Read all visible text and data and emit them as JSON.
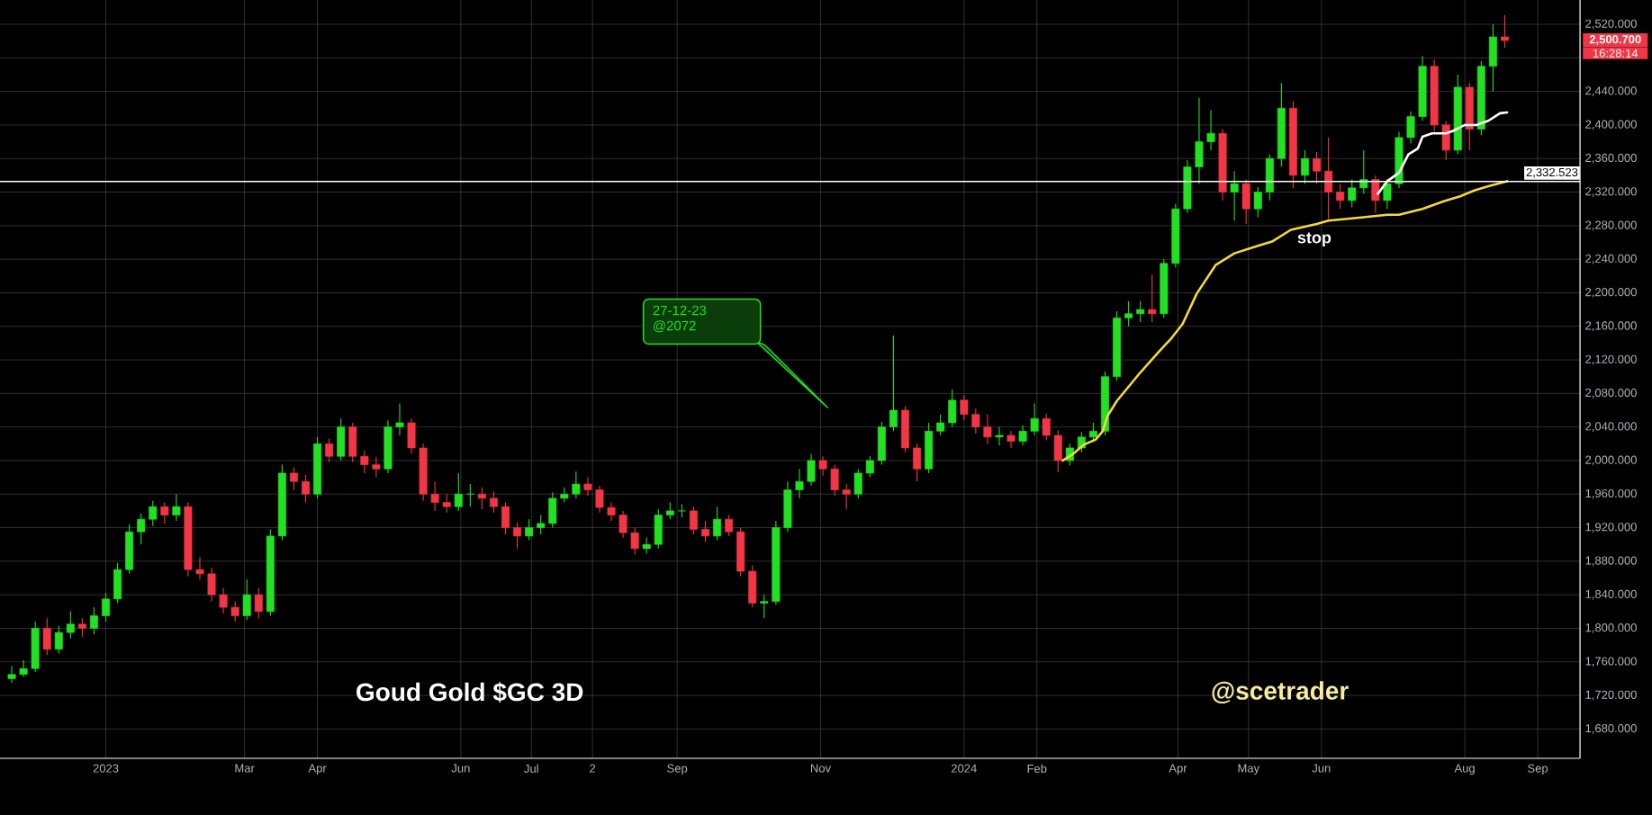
{
  "chart_data": {
    "type": "candlestick",
    "title": "Goud Gold $GC 3D",
    "x": [
      "2022-11-22",
      "2022-11-27",
      "2022-12-02",
      "2022-12-07",
      "2022-12-12",
      "2022-12-17",
      "2022-12-22",
      "2022-12-27",
      "2023-01-01",
      "2023-01-06",
      "2023-01-11",
      "2023-01-16",
      "2023-01-21",
      "2023-01-26",
      "2023-01-31",
      "2023-02-05",
      "2023-02-10",
      "2023-02-15",
      "2023-02-20",
      "2023-02-25",
      "2023-03-02",
      "2023-03-07",
      "2023-03-12",
      "2023-03-17",
      "2023-03-22",
      "2023-03-27",
      "2023-04-01",
      "2023-04-06",
      "2023-04-11",
      "2023-04-16",
      "2023-04-21",
      "2023-04-26",
      "2023-05-01",
      "2023-05-06",
      "2023-05-11",
      "2023-05-16",
      "2023-05-21",
      "2023-05-26",
      "2023-05-31",
      "2023-06-05",
      "2023-06-10",
      "2023-06-15",
      "2023-06-20",
      "2023-06-25",
      "2023-06-30",
      "2023-07-05",
      "2023-07-10",
      "2023-07-15",
      "2023-07-20",
      "2023-07-25",
      "2023-07-30",
      "2023-08-04",
      "2023-08-09",
      "2023-08-14",
      "2023-08-19",
      "2023-08-24",
      "2023-08-29",
      "2023-09-03",
      "2023-09-08",
      "2023-09-13",
      "2023-09-18",
      "2023-09-23",
      "2023-09-28",
      "2023-10-03",
      "2023-10-08",
      "2023-10-13",
      "2023-10-18",
      "2023-10-23",
      "2023-10-28",
      "2023-11-02",
      "2023-11-07",
      "2023-11-12",
      "2023-11-17",
      "2023-11-22",
      "2023-11-27",
      "2023-12-02",
      "2023-12-07",
      "2023-12-12",
      "2023-12-17",
      "2023-12-22",
      "2023-12-27",
      "2024-01-01",
      "2024-01-06",
      "2024-01-11",
      "2024-01-16",
      "2024-01-21",
      "2024-01-26",
      "2024-01-31",
      "2024-02-05",
      "2024-02-10",
      "2024-02-15",
      "2024-02-20",
      "2024-02-25",
      "2024-03-01",
      "2024-03-06",
      "2024-03-11",
      "2024-03-16",
      "2024-03-21",
      "2024-03-26",
      "2024-03-31",
      "2024-04-05",
      "2024-04-10",
      "2024-04-15",
      "2024-04-20",
      "2024-04-25",
      "2024-04-30",
      "2024-05-05",
      "2024-05-10",
      "2024-05-15",
      "2024-05-20",
      "2024-05-25",
      "2024-05-30",
      "2024-06-04",
      "2024-06-09",
      "2024-06-14",
      "2024-06-19",
      "2024-06-24",
      "2024-06-29",
      "2024-07-04",
      "2024-07-09",
      "2024-07-14",
      "2024-07-19",
      "2024-07-24",
      "2024-07-29",
      "2024-08-03",
      "2024-08-08",
      "2024-08-13",
      "2024-08-18"
    ],
    "ohlc": [
      [
        1740,
        1755,
        1735,
        1745
      ],
      [
        1745,
        1762,
        1742,
        1752
      ],
      [
        1752,
        1808,
        1748,
        1800
      ],
      [
        1800,
        1812,
        1768,
        1775
      ],
      [
        1775,
        1803,
        1770,
        1795
      ],
      [
        1795,
        1820,
        1788,
        1805
      ],
      [
        1805,
        1812,
        1790,
        1800
      ],
      [
        1800,
        1825,
        1793,
        1815
      ],
      [
        1815,
        1842,
        1808,
        1835
      ],
      [
        1835,
        1878,
        1830,
        1870
      ],
      [
        1870,
        1924,
        1865,
        1915
      ],
      [
        1915,
        1937,
        1900,
        1930
      ],
      [
        1930,
        1952,
        1922,
        1945
      ],
      [
        1945,
        1950,
        1925,
        1935
      ],
      [
        1935,
        1960,
        1928,
        1945
      ],
      [
        1945,
        1950,
        1862,
        1870
      ],
      [
        1870,
        1885,
        1858,
        1865
      ],
      [
        1865,
        1872,
        1832,
        1840
      ],
      [
        1840,
        1848,
        1818,
        1825
      ],
      [
        1825,
        1832,
        1808,
        1815
      ],
      [
        1815,
        1858,
        1810,
        1840
      ],
      [
        1840,
        1848,
        1812,
        1820
      ],
      [
        1820,
        1918,
        1815,
        1910
      ],
      [
        1910,
        1995,
        1905,
        1985
      ],
      [
        1985,
        1992,
        1965,
        1975
      ],
      [
        1975,
        1983,
        1950,
        1960
      ],
      [
        1960,
        2028,
        1955,
        2020
      ],
      [
        2020,
        2026,
        1998,
        2005
      ],
      [
        2005,
        2050,
        2000,
        2040
      ],
      [
        2040,
        2045,
        1998,
        2005
      ],
      [
        2005,
        2012,
        1985,
        1995
      ],
      [
        1995,
        2004,
        1980,
        1990
      ],
      [
        1990,
        2048,
        1985,
        2040
      ],
      [
        2040,
        2068,
        2030,
        2045
      ],
      [
        2045,
        2050,
        2008,
        2015
      ],
      [
        2015,
        2020,
        1952,
        1960
      ],
      [
        1960,
        1975,
        1940,
        1950
      ],
      [
        1950,
        1960,
        1938,
        1945
      ],
      [
        1945,
        1985,
        1940,
        1960
      ],
      [
        1960,
        1972,
        1945,
        1960
      ],
      [
        1960,
        1968,
        1942,
        1955
      ],
      [
        1955,
        1963,
        1938,
        1945
      ],
      [
        1945,
        1950,
        1912,
        1920
      ],
      [
        1920,
        1926,
        1895,
        1910
      ],
      [
        1910,
        1930,
        1905,
        1920
      ],
      [
        1920,
        1935,
        1912,
        1925
      ],
      [
        1925,
        1962,
        1920,
        1955
      ],
      [
        1955,
        1968,
        1950,
        1960
      ],
      [
        1960,
        1987,
        1955,
        1972
      ],
      [
        1972,
        1980,
        1958,
        1965
      ],
      [
        1965,
        1970,
        1938,
        1944
      ],
      [
        1944,
        1950,
        1928,
        1935
      ],
      [
        1935,
        1940,
        1908,
        1914
      ],
      [
        1914,
        1920,
        1888,
        1895
      ],
      [
        1895,
        1908,
        1889,
        1900
      ],
      [
        1900,
        1942,
        1895,
        1935
      ],
      [
        1935,
        1950,
        1930,
        1940
      ],
      [
        1940,
        1948,
        1932,
        1940
      ],
      [
        1940,
        1945,
        1912,
        1918
      ],
      [
        1918,
        1928,
        1903,
        1910
      ],
      [
        1910,
        1945,
        1905,
        1930
      ],
      [
        1930,
        1935,
        1910,
        1915
      ],
      [
        1915,
        1920,
        1862,
        1868
      ],
      [
        1868,
        1875,
        1825,
        1830
      ],
      [
        1830,
        1840,
        1812,
        1832
      ],
      [
        1832,
        1928,
        1828,
        1920
      ],
      [
        1920,
        1975,
        1915,
        1965
      ],
      [
        1965,
        1990,
        1955,
        1975
      ],
      [
        1975,
        2008,
        1970,
        2000
      ],
      [
        2000,
        2005,
        1982,
        1990
      ],
      [
        1990,
        1995,
        1958,
        1965
      ],
      [
        1965,
        1972,
        1942,
        1960
      ],
      [
        1960,
        1990,
        1955,
        1985
      ],
      [
        1985,
        2005,
        1980,
        2000
      ],
      [
        2000,
        2046,
        1995,
        2040
      ],
      [
        2040,
        2149,
        2035,
        2060
      ],
      [
        2060,
        2065,
        2010,
        2015
      ],
      [
        2015,
        2020,
        1975,
        1990
      ],
      [
        1990,
        2045,
        1985,
        2035
      ],
      [
        2035,
        2055,
        2030,
        2045
      ],
      [
        2045,
        2085,
        2040,
        2072
      ],
      [
        2072,
        2078,
        2048,
        2055
      ],
      [
        2055,
        2062,
        2032,
        2040
      ],
      [
        2040,
        2055,
        2020,
        2028
      ],
      [
        2028,
        2040,
        2018,
        2030
      ],
      [
        2030,
        2035,
        2015,
        2023
      ],
      [
        2023,
        2042,
        2018,
        2035
      ],
      [
        2035,
        2068,
        2030,
        2050
      ],
      [
        2050,
        2056,
        2024,
        2030
      ],
      [
        2030,
        2036,
        1986,
        2000
      ],
      [
        2000,
        2020,
        1994,
        2015
      ],
      [
        2015,
        2034,
        2010,
        2028
      ],
      [
        2028,
        2045,
        2022,
        2035
      ],
      [
        2035,
        2106,
        2030,
        2100
      ],
      [
        2100,
        2178,
        2095,
        2170
      ],
      [
        2170,
        2190,
        2160,
        2175
      ],
      [
        2175,
        2190,
        2165,
        2180
      ],
      [
        2180,
        2222,
        2165,
        2175
      ],
      [
        2175,
        2240,
        2170,
        2235
      ],
      [
        2235,
        2306,
        2230,
        2300
      ],
      [
        2300,
        2358,
        2295,
        2350
      ],
      [
        2350,
        2432,
        2330,
        2380
      ],
      [
        2380,
        2418,
        2370,
        2390
      ],
      [
        2390,
        2395,
        2310,
        2320
      ],
      [
        2320,
        2345,
        2286,
        2330
      ],
      [
        2330,
        2335,
        2282,
        2300
      ],
      [
        2300,
        2326,
        2290,
        2320
      ],
      [
        2320,
        2365,
        2310,
        2360
      ],
      [
        2360,
        2450,
        2350,
        2420
      ],
      [
        2420,
        2428,
        2325,
        2340
      ],
      [
        2340,
        2370,
        2330,
        2360
      ],
      [
        2360,
        2368,
        2330,
        2345
      ],
      [
        2345,
        2385,
        2288,
        2320
      ],
      [
        2320,
        2330,
        2300,
        2310
      ],
      [
        2310,
        2335,
        2302,
        2325
      ],
      [
        2325,
        2370,
        2318,
        2335
      ],
      [
        2335,
        2340,
        2295,
        2310
      ],
      [
        2310,
        2335,
        2300,
        2330
      ],
      [
        2330,
        2392,
        2325,
        2385
      ],
      [
        2385,
        2416,
        2378,
        2410
      ],
      [
        2410,
        2482,
        2405,
        2470
      ],
      [
        2470,
        2478,
        2392,
        2400
      ],
      [
        2400,
        2405,
        2358,
        2370
      ],
      [
        2370,
        2460,
        2365,
        2445
      ],
      [
        2445,
        2450,
        2370,
        2395
      ],
      [
        2395,
        2476,
        2388,
        2470
      ],
      [
        2470,
        2520,
        2440,
        2505
      ],
      [
        2505,
        2531,
        2492,
        2500.7
      ]
    ],
    "colors": [
      "#22e022",
      "#22e022",
      "#22e022",
      "#f23645",
      "#22e022",
      "#22e022",
      "#f23645",
      "#22e022",
      "#22e022",
      "#22e022",
      "#22e022",
      "#22e022",
      "#22e022",
      "#f23645",
      "#22e022",
      "#f23645",
      "#f23645",
      "#f23645",
      "#f23645",
      "#f23645",
      "#22e022",
      "#f23645",
      "#22e022",
      "#22e022",
      "#f23645",
      "#f23645",
      "#22e022",
      "#f23645",
      "#22e022",
      "#f23645",
      "#f23645",
      "#f23645",
      "#22e022",
      "#22e022",
      "#f23645",
      "#f23645",
      "#f23645",
      "#f23645",
      "#22e022",
      "#22e022",
      "#f23645",
      "#f23645",
      "#f23645",
      "#f23645",
      "#22e022",
      "#22e022",
      "#22e022",
      "#22e022",
      "#22e022",
      "#f23645",
      "#f23645",
      "#f23645",
      "#f23645",
      "#f23645",
      "#22e022",
      "#22e022",
      "#22e022",
      "#22e022",
      "#f23645",
      "#f23645",
      "#22e022",
      "#f23645",
      "#f23645",
      "#f23645",
      "#22e022",
      "#22e022",
      "#22e022",
      "#22e022",
      "#22e022",
      "#f23645",
      "#f23645",
      "#f23645",
      "#22e022",
      "#22e022",
      "#22e022",
      "#22e022",
      "#f23645",
      "#f23645",
      "#22e022",
      "#22e022",
      "#22e022",
      "#f23645",
      "#f23645",
      "#f23645",
      "#22e022",
      "#f23645",
      "#22e022",
      "#22e022",
      "#f23645",
      "#f23645",
      "#22e022",
      "#22e022",
      "#22e022",
      "#22e022",
      "#22e022",
      "#22e022",
      "#22e022",
      "#f23645",
      "#22e022",
      "#22e022",
      "#22e022",
      "#22e022",
      "#22e022",
      "#f23645",
      "#22e022",
      "#f23645",
      "#22e022",
      "#22e022",
      "#22e022",
      "#f23645",
      "#22e022",
      "#f23645",
      "#f23645",
      "#f23645",
      "#22e022",
      "#22e022",
      "#f23645",
      "#22e022",
      "#22e022",
      "#22e022",
      "#22e022",
      "#f23645",
      "#f23645",
      "#22e022",
      "#f23645",
      "#22e022",
      "#22e022",
      "#f23645"
    ],
    "series": [
      {
        "type": "line",
        "color": "#f5d93a",
        "x": [
          "2024-02-12",
          "2024-02-16",
          "2024-02-21",
          "2024-02-26",
          "2024-02-29",
          "2024-03-02",
          "2024-03-06",
          "2024-03-16",
          "2024-03-24",
          "2024-03-29",
          "2024-04-03",
          "2024-04-09",
          "2024-04-17",
          "2024-04-25",
          "2024-05-05",
          "2024-05-11",
          "2024-05-19",
          "2024-05-30",
          "2024-06-04",
          "2024-06-19",
          "2024-06-29",
          "2024-07-04",
          "2024-07-14",
          "2024-07-23",
          "2024-07-30",
          "2024-08-05",
          "2024-08-11",
          "2024-08-19"
        ],
        "values": [
          2000,
          2007,
          2019,
          2025,
          2035,
          2053,
          2071,
          2105,
          2130,
          2145,
          2163,
          2199,
          2233,
          2247,
          2256,
          2261,
          2275,
          2282,
          2286,
          2290,
          2293,
          2293,
          2300,
          2309,
          2315,
          2322,
          2327,
          2333
        ]
      },
      {
        "type": "line",
        "color": "#ffffff",
        "x": [
          "2024-06-25",
          "2024-06-29",
          "2024-07-04",
          "2024-07-08",
          "2024-07-12",
          "2024-07-14",
          "2024-07-18",
          "2024-07-24",
          "2024-07-27",
          "2024-08-01",
          "2024-08-06",
          "2024-08-11",
          "2024-08-16",
          "2024-08-19"
        ],
        "values": [
          2318,
          2333,
          2343,
          2365,
          2372,
          2386,
          2390,
          2390,
          2393,
          2400,
          2400,
          2405,
          2414,
          2415
        ]
      }
    ],
    "ref_lines": [
      {
        "axis": "y",
        "value": 2332.523,
        "label": "2,332.523",
        "color": "#ffffff"
      }
    ],
    "annotations": [
      "27-12-23 @2072",
      {
        "text": "stop",
        "x": "2024-05-29",
        "y": 2282
      },
      "2,500.700",
      "16:28:14",
      "@scetrader"
    ],
    "xlim": [
      "2022-11-17",
      "2024-09-19"
    ],
    "xticks": [
      {
        "value": "2023-01-01",
        "label": "2023"
      },
      {
        "value": "2023-03-01",
        "label": "Mar"
      },
      {
        "value": "2023-04-01",
        "label": "Apr"
      },
      {
        "value": "2023-06-01",
        "label": "Jun"
      },
      {
        "value": "2023-07-01",
        "label": "Jul"
      },
      {
        "value": "2023-07-27",
        "label": "2"
      },
      {
        "value": "2023-09-01",
        "label": "Sep"
      },
      {
        "value": "2023-11-01",
        "label": "Nov"
      },
      {
        "value": "2024-01-01",
        "label": "2024"
      },
      {
        "value": "2024-02-01",
        "label": "Feb"
      },
      {
        "value": "2024-04-01",
        "label": "Apr"
      },
      {
        "value": "2024-05-01",
        "label": "May"
      },
      {
        "value": "2024-06-01",
        "label": "Jun"
      },
      {
        "value": "2024-08-01",
        "label": "Aug"
      },
      {
        "value": "2024-09-01",
        "label": "Sep"
      }
    ],
    "ylim": [
      1645,
      2549
    ],
    "yticks": [
      {
        "value": 1680,
        "label": "1,680.000"
      },
      {
        "value": 1720,
        "label": "1,720.000"
      },
      {
        "value": 1760,
        "label": "1,760.000"
      },
      {
        "value": 1800,
        "label": "1,800.000"
      },
      {
        "value": 1840,
        "label": "1,840.000"
      },
      {
        "value": 1880,
        "label": "1,880.000"
      },
      {
        "value": 1920,
        "label": "1,920.000"
      },
      {
        "value": 1960,
        "label": "1,960.000"
      },
      {
        "value": 2000,
        "label": "2,000.000"
      },
      {
        "value": 2040,
        "label": "2,040.000"
      },
      {
        "value": 2080,
        "label": "2,080.000"
      },
      {
        "value": 2120,
        "label": "2,120.000"
      },
      {
        "value": 2160,
        "label": "2,160.000"
      },
      {
        "value": 2200,
        "label": "2,200.000"
      },
      {
        "value": 2240,
        "label": "2,240.000"
      },
      {
        "value": 2280,
        "label": "2,280.000"
      },
      {
        "value": 2320,
        "label": "2,320.000"
      },
      {
        "value": 2360,
        "label": "2,360.000"
      },
      {
        "value": 2400,
        "label": "2,400.000"
      },
      {
        "value": 2440,
        "label": "2,440.000"
      },
      {
        "value": 2480,
        "label": null
      },
      {
        "value": 2520,
        "label": "2,520.000"
      }
    ],
    "grid": true
  }
}
